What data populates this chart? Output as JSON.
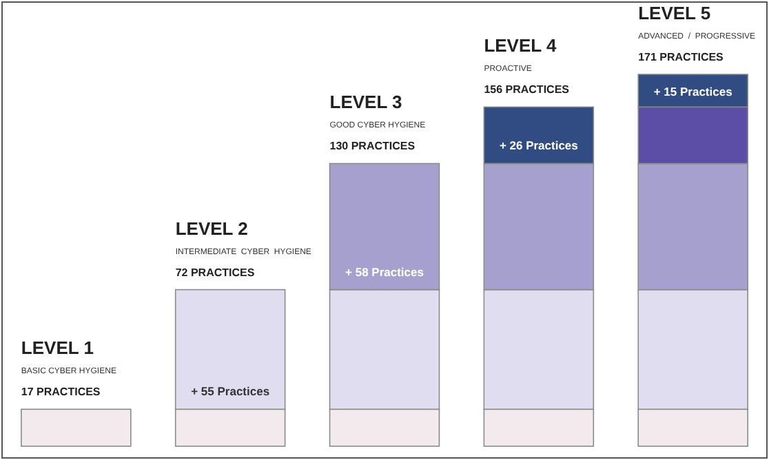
{
  "chart_data": {
    "type": "bar",
    "stacked": true,
    "data_labels": false,
    "categories": [
      null,
      null,
      null,
      null,
      null
    ],
    "series": [
      {
        "color": "#f3eaee",
        "values": [
          17,
          17,
          17,
          17,
          17
        ]
      },
      {
        "color": "#e0ddf1",
        "values": [
          null,
          55,
          55,
          55,
          55
        ],
        "value_labels": [
          null,
          "+ 55 Practices",
          null,
          null,
          null
        ]
      },
      {
        "color": "#a6a0cf",
        "values": [
          null,
          null,
          58,
          58,
          58
        ],
        "value_labels": [
          null,
          null,
          "+ 58 Practices",
          null,
          null
        ]
      },
      {
        "colors": [
          null,
          null,
          null,
          "#304c82",
          "#5c4ea6"
        ],
        "values": [
          null,
          null,
          null,
          26,
          26
        ],
        "value_labels": [
          null,
          null,
          null,
          "+ 26 Practices",
          null
        ]
      },
      {
        "color": "#304c82",
        "values": [
          null,
          null,
          null,
          null,
          15
        ],
        "value_labels": [
          null,
          null,
          null,
          null,
          "+ 15 Practices"
        ]
      }
    ],
    "totals": [
      "17 PRACTICES",
      "72 PRACTICES",
      "130 PRACTICES",
      "156 PRACTICES",
      "171 PRACTICES"
    ],
    "annotations": [
      "LEVEL 1",
      "BASIC CYBER HYGIENE",
      "LEVEL 2",
      "INTERMEDIATE  CYBER  HYGIENE",
      "LEVEL 3",
      "GOOD CYBER HYGIENE",
      "LEVEL 4",
      "PROACTIVE",
      "LEVEL 5",
      "ADVANCED  /  PROGRESSIVE"
    ]
  }
}
